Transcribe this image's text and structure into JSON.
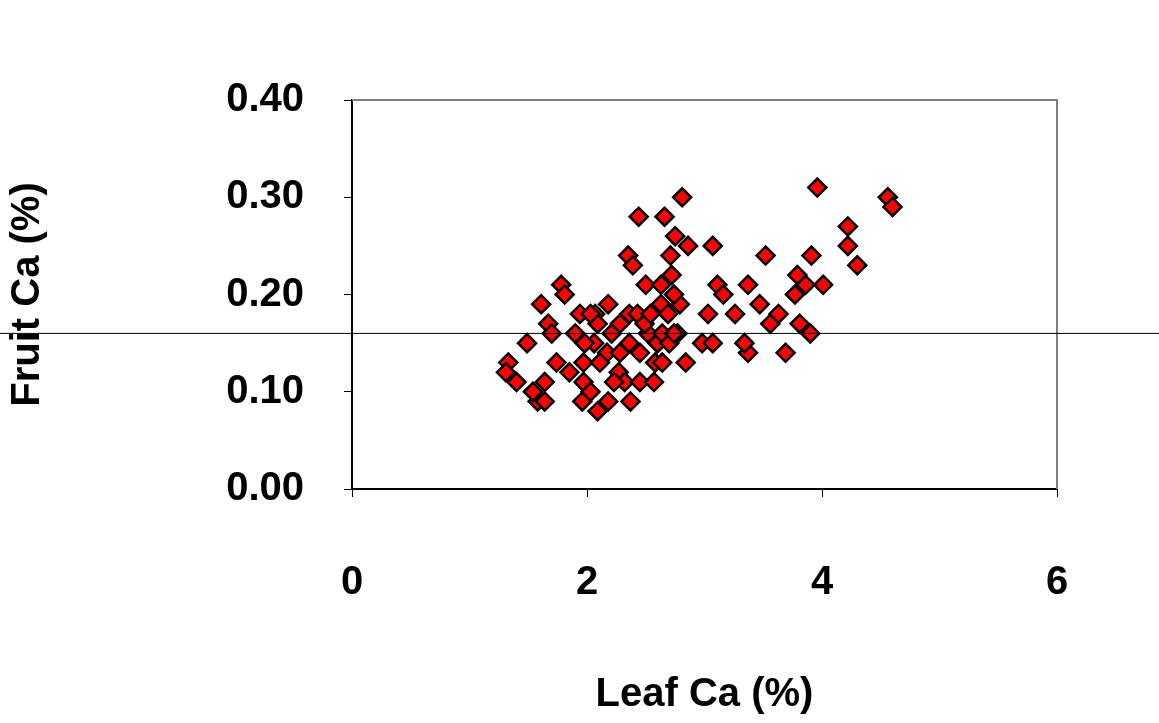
{
  "chart_data": {
    "type": "scatter",
    "xlabel": "Leaf Ca (%)",
    "ylabel": "Fruit Ca (%)",
    "xlim": [
      0,
      6
    ],
    "xticks": [
      0,
      2,
      4,
      6
    ],
    "ylim": [
      0,
      0.4
    ],
    "yticks": [
      {
        "value": 0,
        "label": "0.00"
      },
      {
        "value": 0.1,
        "label": "0.10"
      },
      {
        "value": 0.2,
        "label": "0.20"
      },
      {
        "value": 0.3,
        "label": "0.30"
      },
      {
        "value": 0.4,
        "label": "0.40"
      }
    ],
    "grid": false,
    "legend": false,
    "marker": "diamond",
    "ref_lines": [
      {
        "axis": "y",
        "value": 0.16,
        "color": "#000000"
      }
    ],
    "series": [
      {
        "color": "#ff0000",
        "x": [
          1.33,
          1.31,
          1.4,
          1.49,
          1.61,
          1.67,
          1.64,
          1.58,
          1.64,
          1.54,
          1.78,
          1.81,
          1.7,
          1.74,
          1.85,
          1.9,
          1.94,
          1.97,
          1.97,
          1.96,
          2.03,
          2.09,
          2.06,
          2.07,
          2.09,
          2.18,
          2.17,
          2.21,
          2.27,
          2.28,
          2.18,
          2.32,
          2.37,
          2.36,
          2.43,
          2.35,
          2.39,
          2.44,
          2.45,
          2.45,
          2.52,
          2.5,
          2.58,
          2.6,
          2.63,
          2.66,
          2.63,
          2.71,
          2.75,
          2.72,
          2.69,
          2.81,
          2.86,
          2.84,
          2.77,
          2.79,
          2.98,
          3.07,
          3.07,
          3.03,
          3.11,
          3.16,
          3.26,
          3.37,
          3.37,
          3.34,
          3.52,
          3.47,
          3.56,
          3.63,
          3.69,
          3.81,
          3.77,
          3.79,
          3.91,
          3.9,
          3.96,
          4.01,
          3.86,
          4.22,
          4.22,
          4.3,
          4.56,
          4.6,
          2.03,
          2.11,
          2.23,
          2.36,
          2.49,
          2.54,
          2.64,
          2.7,
          2.74,
          2.74,
          2.28,
          1.98,
          2.57,
          2.64
        ],
        "values": [
          0.13,
          0.12,
          0.11,
          0.15,
          0.19,
          0.17,
          0.11,
          0.09,
          0.09,
          0.1,
          0.21,
          0.2,
          0.16,
          0.13,
          0.12,
          0.16,
          0.18,
          0.13,
          0.11,
          0.09,
          0.1,
          0.08,
          0.15,
          0.18,
          0.17,
          0.19,
          0.14,
          0.16,
          0.12,
          0.17,
          0.09,
          0.11,
          0.09,
          0.18,
          0.18,
          0.24,
          0.23,
          0.28,
          0.14,
          0.11,
          0.16,
          0.21,
          0.13,
          0.15,
          0.19,
          0.28,
          0.21,
          0.24,
          0.26,
          0.22,
          0.18,
          0.3,
          0.25,
          0.13,
          0.16,
          0.19,
          0.15,
          0.25,
          0.15,
          0.18,
          0.21,
          0.2,
          0.18,
          0.21,
          0.14,
          0.15,
          0.24,
          0.19,
          0.17,
          0.18,
          0.14,
          0.17,
          0.2,
          0.22,
          0.24,
          0.16,
          0.31,
          0.21,
          0.21,
          0.27,
          0.25,
          0.23,
          0.3,
          0.29,
          0.18,
          0.13,
          0.11,
          0.15,
          0.17,
          0.18,
          0.16,
          0.15,
          0.2,
          0.16,
          0.14,
          0.15,
          0.11,
          0.13
        ]
      }
    ]
  }
}
